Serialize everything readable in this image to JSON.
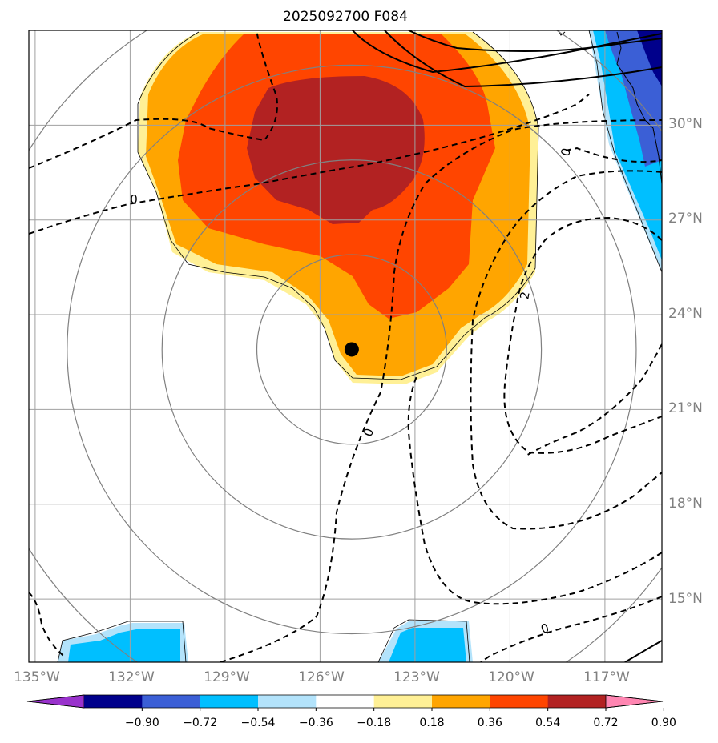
{
  "chart_data": {
    "type": "contour-map",
    "title": "2025092700 F084",
    "projection": "lat-lon",
    "x_ticks": [
      "135°W",
      "132°W",
      "129°W",
      "126°W",
      "123°W",
      "120°W",
      "117°W"
    ],
    "y_ticks": [
      "30°N",
      "27°N",
      "24°N",
      "21°N",
      "18°N",
      "15°N"
    ],
    "lon_range": [
      -135.2,
      -115.2
    ],
    "lat_range": [
      13.0,
      33.0
    ],
    "grid": true,
    "colorbar": {
      "orientation": "horizontal",
      "extend": "both",
      "tick_labels": [
        "−0.90",
        "−0.72",
        "−0.54",
        "−0.36",
        "−0.18",
        "0.18",
        "0.36",
        "0.54",
        "0.72",
        "0.90"
      ],
      "levels": [
        -0.9,
        -0.72,
        -0.54,
        -0.36,
        -0.18,
        0.18,
        0.36,
        0.54,
        0.72,
        0.9
      ],
      "colors": [
        "#9932cc",
        "#00008b",
        "#3b5fd6",
        "#00bfff",
        "#b3e3fb",
        "#ffffff",
        "#fff096",
        "#ffa500",
        "#ff4500",
        "#b22222",
        "#ff86b2"
      ]
    },
    "storm_center": {
      "lon": -125.0,
      "lat": 22.9
    },
    "range_rings_deg": [
      3,
      6,
      9,
      12
    ],
    "contour_labels": [
      "0",
      "0",
      "2",
      "0",
      "0"
    ],
    "colors": {
      "grid": "#a0a0a0",
      "rings": "#808080",
      "contours": "#000000"
    }
  }
}
